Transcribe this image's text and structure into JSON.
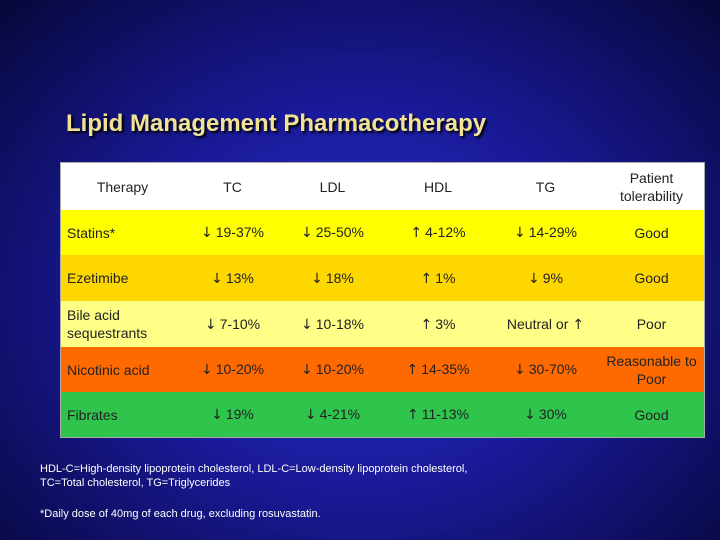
{
  "slide": {
    "title": "Lipid Management Pharmacotherapy",
    "footnote_line1": "HDL-C=High-density lipoprotein cholesterol, LDL-C=Low-density lipoprotein cholesterol,",
    "footnote_line2": "TC=Total cholesterol, TG=Triglycerides",
    "footnote_asterisk": "*Daily dose of 40mg of each drug, excluding rosuvastatin."
  },
  "table": {
    "headers": [
      "Therapy",
      "TC",
      "LDL",
      "HDL",
      "TG",
      "Patient tolerability"
    ],
    "row_colors": [
      "#ffff00",
      "#ffd700",
      "#ffff88",
      "#ff6a00",
      "#2fc54d"
    ],
    "rows": [
      [
        "Statins*",
        "19-37%",
        "25-50%",
        "4-12%",
        "14-29%",
        "Good"
      ],
      [
        "Ezetimibe",
        "13%",
        "18%",
        "1%",
        "9%",
        "Good"
      ],
      [
        "Bile acid sequestrants",
        "7-10%",
        "10-18%",
        "3%",
        "Neutral or",
        "Poor"
      ],
      [
        "Nicotinic acid",
        "10-20%",
        "10-20%",
        "14-35%",
        "30-70%",
        "Reasonable to Poor"
      ],
      [
        "Fibrates",
        "19%",
        "4-21%",
        "11-13%",
        "30%",
        "Good"
      ]
    ],
    "arrows": {
      "down": "↓",
      "up": "↑"
    }
  }
}
